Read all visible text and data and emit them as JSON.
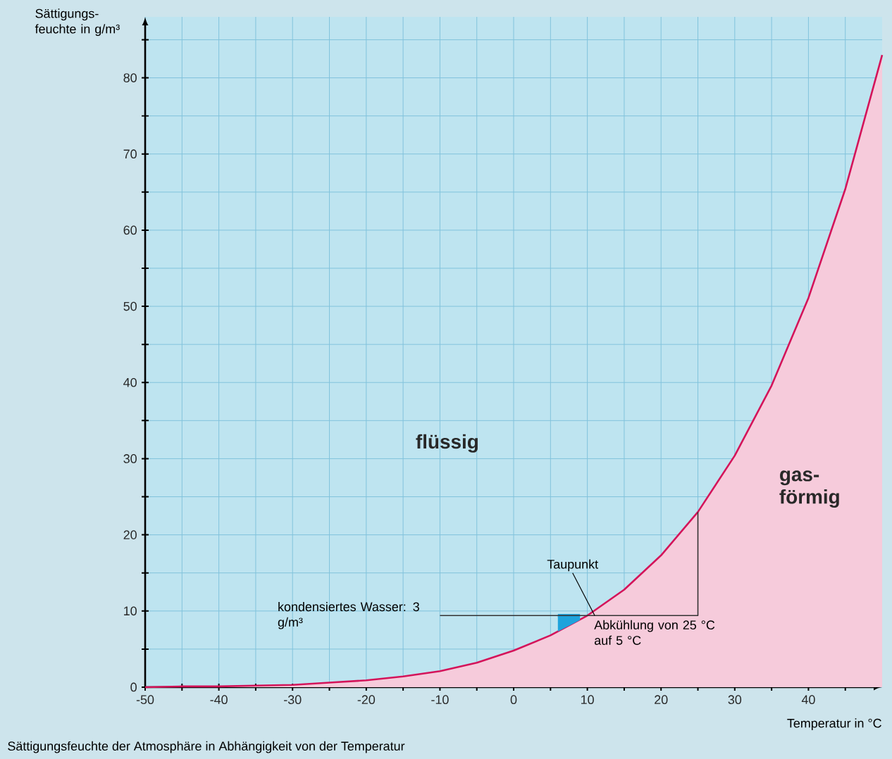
{
  "chart_data": {
    "type": "line",
    "xlabel": "Temperatur in °C",
    "ylabel": "Sättigungs- feuchte in g/m³",
    "xlim": [
      -50,
      50
    ],
    "ylim": [
      0,
      88
    ],
    "xticks": [
      -50,
      {
        "value": -45,
        "label": null
      },
      -40,
      {
        "value": -35,
        "label": null
      },
      -30,
      {
        "value": -25,
        "label": null
      },
      -20,
      {
        "value": -15,
        "label": null
      },
      -10,
      {
        "value": -5,
        "label": null
      },
      0,
      {
        "value": 5,
        "label": null
      },
      10,
      {
        "value": 15,
        "label": null
      },
      20,
      {
        "value": 25,
        "label": null
      },
      30,
      {
        "value": 35,
        "label": null
      },
      40,
      {
        "value": 45,
        "label": null
      }
    ],
    "yticks": [
      0,
      {
        "value": 5,
        "label": null
      },
      10,
      {
        "value": 15,
        "label": null
      },
      20,
      {
        "value": 25,
        "label": null
      },
      30,
      {
        "value": 35,
        "label": null
      },
      40,
      {
        "value": 45,
        "label": null
      },
      50,
      {
        "value": 55,
        "label": null
      },
      60,
      {
        "value": 65,
        "label": null
      },
      70,
      {
        "value": 75,
        "label": null
      },
      80,
      {
        "value": 85,
        "label": null
      }
    ],
    "grid": true,
    "series": [
      {
        "color": "#d4145a",
        "x": [
          -50,
          -45,
          -40,
          -35,
          -30,
          -25,
          -20,
          -15,
          -10,
          -5,
          0,
          5,
          10,
          15,
          20,
          25,
          30,
          35,
          40,
          45,
          50
        ],
        "values": [
          0,
          0.1,
          0.1,
          0.2,
          0.3,
          0.6,
          0.9,
          1.4,
          2.1,
          3.2,
          4.8,
          6.8,
          9.4,
          12.8,
          17.3,
          23,
          30.4,
          39.6,
          51.1,
          65.4,
          83
        ]
      },
      {
        "type": "line",
        "color": "#1fa3dc",
        "x": [
          6,
          7,
          8,
          9
        ],
        "values": [
          9.4,
          9.4,
          9.4,
          9.4
        ],
        "lower": [
          7.3,
          7.8,
          8.3,
          8.8
        ],
        "upper": [
          9.4,
          9.4,
          9.4,
          9.4
        ]
      },
      {
        "type": "line",
        "color": "#333333",
        "x": [
          25,
          25,
          -10
        ],
        "values": [
          23,
          9.4,
          9.4
        ]
      }
    ],
    "annotations": [
      "flüssig",
      "gas-förmig",
      {
        "text": "Taupunkt",
        "x": 11,
        "y": 9.4
      },
      {
        "text": "kondensiertes Wasser: 3 g/m³",
        "x": -10,
        "y": 9.4
      },
      {
        "text": "Abkühlung von 25 °C auf 5 °C",
        "x": 25,
        "y": 9.4
      },
      "Sättigungsfeuchte der Atmosphäre in Abhängigkeit von der Temperatur"
    ]
  }
}
